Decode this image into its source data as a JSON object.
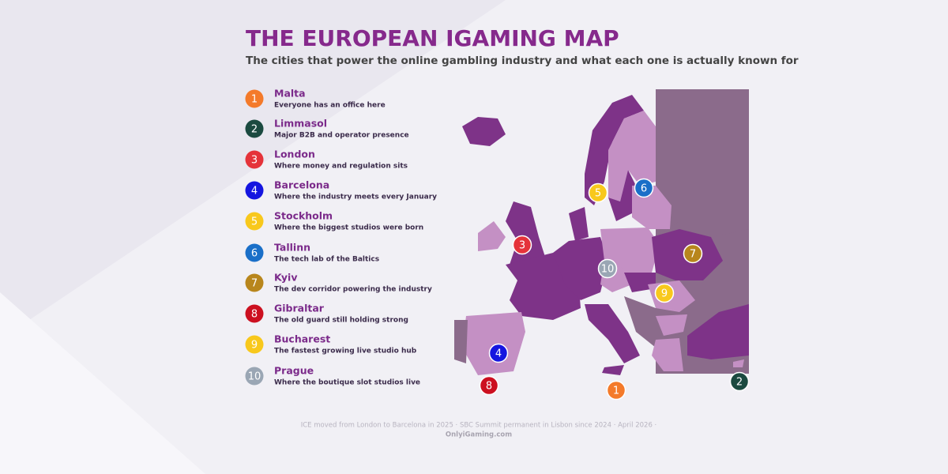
{
  "header": {
    "title": "THE EUROPEAN IGAMING MAP",
    "subtitle": "The cities that power the online gambling industry and what each one is actually known for"
  },
  "items": [
    {
      "number": 1,
      "name": "Malta",
      "description": "Everyone has an office here",
      "color": "#f47a2a"
    },
    {
      "number": 2,
      "name": "Limmasol",
      "description": "Major B2B and operator presence",
      "color": "#1b4a40"
    },
    {
      "number": 3,
      "name": "London",
      "description": "Where money and regulation sits",
      "color": "#e5333a"
    },
    {
      "number": 4,
      "name": "Barcelona",
      "description": "Where the industry meets every January",
      "color": "#1515e0"
    },
    {
      "number": 5,
      "name": "Stockholm",
      "description": "Where the biggest studios were born",
      "color": "#f8c81c"
    },
    {
      "number": 6,
      "name": "Tallinn",
      "description": "The tech lab of the Baltics",
      "color": "#1a6fc8"
    },
    {
      "number": 7,
      "name": "Kyiv",
      "description": "The dev corridor powering the industry",
      "color": "#b8861c"
    },
    {
      "number": 8,
      "name": "Gibraltar",
      "description": "The old guard still holding strong",
      "color": "#cc1020"
    },
    {
      "number": 9,
      "name": "Bucharest",
      "description": "The fastest growing live studio hub",
      "color": "#f8c81c"
    },
    {
      "number": 10,
      "name": "Prague",
      "description": "Where the boutique slot studios live",
      "color": "#9aa6b4"
    }
  ],
  "footer": {
    "note": "ICE moved from London to Barcelona in 2025 · SBC Summit permanent in Lisbon since 2024 · April 2026 ·",
    "source": "OnlyiGaming.com"
  }
}
